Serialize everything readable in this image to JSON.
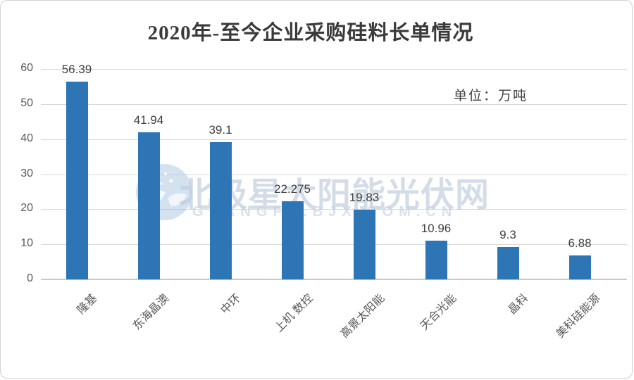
{
  "title": "2020年-至今企业采购硅料长单情况",
  "unit_label": "单位：万吨",
  "watermark": {
    "text": "北极星太阳能光伏网",
    "subtext": "GUANGFU.BJX.COM.CN",
    "logo": "bjx-polar-star-logo"
  },
  "colors": {
    "bar": "#2e75b6",
    "title_text": "#3a3a3a",
    "axis_text": "#595959",
    "data_label_text": "#404040",
    "gridline": "#d9d9d9",
    "axis_line": "#c9c9c9",
    "watermark_text": "#b8c6d7",
    "frame_border": "#d3d3d3"
  },
  "chart_data": {
    "type": "bar",
    "title": "2020年-至今企业采购硅料长单情况",
    "unit": "万吨",
    "categories": [
      "隆基",
      "东海晶澳",
      "中环",
      "上机 数控",
      "高景太阳能",
      "天合光能",
      "晶科",
      "美科硅能源"
    ],
    "values": [
      56.39,
      41.94,
      39.1,
      22.275,
      19.83,
      10.96,
      9.3,
      6.88
    ],
    "data_labels": [
      "56.39",
      "41.94",
      "39.1",
      "22.275",
      "19.83",
      "10.96",
      "9.3",
      "6.88"
    ],
    "xlabel": "",
    "ylabel": "",
    "y_ticks": [
      0,
      10,
      20,
      30,
      40,
      50,
      60
    ],
    "ylim": [
      0,
      60
    ],
    "grid": true,
    "legend": false,
    "data_labels_shown": true
  }
}
